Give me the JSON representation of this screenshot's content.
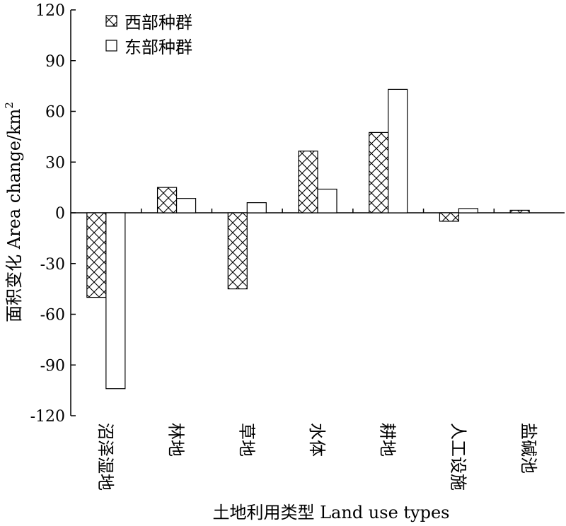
{
  "chart_data": {
    "type": "bar",
    "title": "",
    "xlabel": "土地利用类型 Land use types",
    "ylabel": "面积变化 Area change/km",
    "ylabel_sup": "2",
    "ylim": [
      -120,
      120
    ],
    "yticks": [
      120,
      90,
      60,
      30,
      0,
      -30,
      -60,
      -90,
      -120
    ],
    "categories": [
      "沼泽湿地",
      "林地",
      "草地",
      "水体",
      "耕地",
      "人工设施",
      "盐碱池"
    ],
    "series": [
      {
        "name": "西部种群",
        "pattern": "crosshatch",
        "values": [
          -50,
          15,
          -45,
          36.5,
          47.5,
          -5,
          1.5
        ]
      },
      {
        "name": "东部种群",
        "pattern": "empty",
        "values": [
          -104,
          8.5,
          6,
          14,
          73,
          2.5,
          0
        ]
      }
    ],
    "legend_position": "top-left",
    "grid": false
  }
}
